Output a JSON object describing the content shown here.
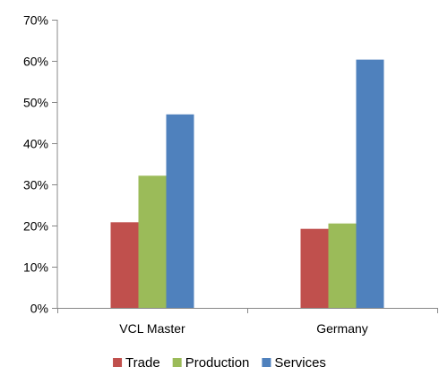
{
  "chart_data": {
    "type": "bar",
    "categories": [
      "VCL Master",
      "Germany"
    ],
    "series": [
      {
        "name": "Trade",
        "values": [
          20.8,
          19.2
        ],
        "color": "#c0504d"
      },
      {
        "name": "Production",
        "values": [
          32.1,
          20.5
        ],
        "color": "#9bbb59"
      },
      {
        "name": "Services",
        "values": [
          47.0,
          60.3
        ],
        "color": "#4f81bd"
      }
    ],
    "y_ticks": [
      "0%",
      "10%",
      "20%",
      "30%",
      "40%",
      "50%",
      "60%",
      "70%"
    ],
    "ylim": [
      0,
      70
    ],
    "grid": false,
    "legend_position": "bottom"
  }
}
